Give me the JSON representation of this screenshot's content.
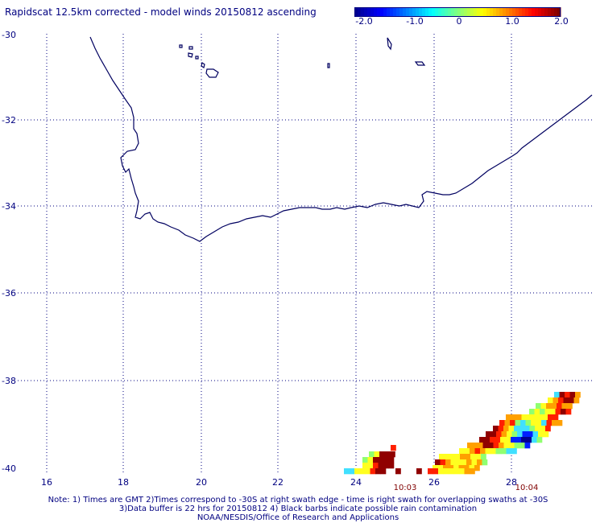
{
  "title": "Rapidscat 12.5km corrected - model winds 20150812 ascending",
  "colorbar": {
    "labels": [
      "-2.0",
      "-1.0",
      "0",
      "1.0",
      "2.0"
    ],
    "colors": [
      "#000090",
      "#0000ff",
      "#0080ff",
      "#00ffff",
      "#80ff80",
      "#ffff00",
      "#ff8000",
      "#ff0000",
      "#800000"
    ]
  },
  "map": {
    "lat_labels": [
      "-30",
      "-32",
      "-34",
      "-36",
      "-38",
      "-40"
    ],
    "lon_labels": [
      "16",
      "18",
      "20",
      "22",
      "24",
      "26",
      "28"
    ],
    "time_labels": [
      "10:03",
      "10:04"
    ],
    "grid_style": "dotted",
    "coastline_color": "#000060"
  },
  "notes": {
    "line1": "Note: 1) Times are GMT 2)Times correspond to -30S at right swath edge - time is right swath for overlapping swaths at -30S",
    "line2": "3)Data buffer is 22 hrs for 20150812 4) Black barbs indicate possible rain contamination",
    "line3": "NOAA/NESDIS/Office of Research and Applications"
  }
}
